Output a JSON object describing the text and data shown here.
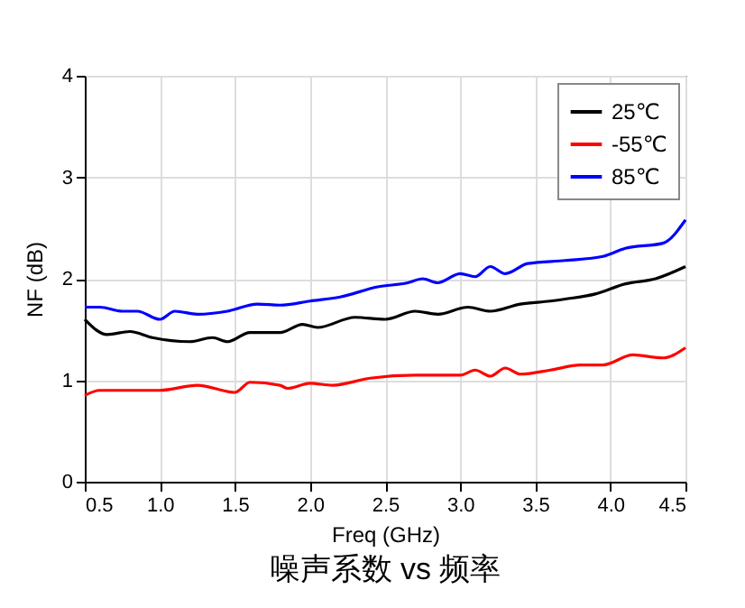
{
  "chart_data": {
    "type": "line",
    "xlabel": "Freq (GHz)",
    "ylabel": "NF (dB)",
    "annotations": [
      "噪声系数 vs 频率"
    ],
    "xlim": [
      0.5,
      4.5
    ],
    "xticks": [
      0.5,
      {
        "value": 1,
        "label": "1.0"
      },
      1.5,
      {
        "value": 2,
        "label": "2.0"
      },
      2.5,
      {
        "value": 3,
        "label": "3.0"
      },
      3.5,
      {
        "value": 4,
        "label": "4.0"
      },
      4.5
    ],
    "ylim": [
      0,
      4
    ],
    "yticks": [
      0,
      1,
      2,
      3,
      4
    ],
    "grid": true,
    "legend": "top right",
    "series": [
      {
        "name": "25℃",
        "color": "#000000",
        "x": [
          0.5,
          0.65,
          0.8,
          0.95,
          1.2,
          1.35,
          1.45,
          1.6,
          1.8,
          1.95,
          2.05,
          2.3,
          2.5,
          2.7,
          2.85,
          3.05,
          3.2,
          3.4,
          3.6,
          3.7,
          3.9,
          4.1,
          4.3,
          4.5
        ],
        "values": [
          1.6,
          1.45,
          1.48,
          1.42,
          1.38,
          1.42,
          1.38,
          1.47,
          1.47,
          1.55,
          1.52,
          1.62,
          1.6,
          1.68,
          1.65,
          1.72,
          1.68,
          1.75,
          1.78,
          1.8,
          1.85,
          1.95,
          2.0,
          2.12
        ]
      },
      {
        "name": "-55℃",
        "color": "#ff0000",
        "x": [
          0.5,
          0.6,
          1.0,
          1.25,
          1.5,
          1.6,
          1.8,
          1.85,
          2.0,
          2.15,
          2.4,
          2.7,
          3.0,
          3.1,
          3.2,
          3.3,
          3.4,
          3.6,
          3.8,
          3.95,
          4.15,
          4.35,
          4.5
        ],
        "values": [
          0.85,
          0.9,
          0.9,
          0.95,
          0.88,
          0.98,
          0.95,
          0.92,
          0.97,
          0.95,
          1.02,
          1.05,
          1.05,
          1.1,
          1.04,
          1.12,
          1.06,
          1.1,
          1.15,
          1.15,
          1.25,
          1.22,
          1.32
        ]
      },
      {
        "name": "85℃",
        "color": "#0000ff",
        "x": [
          0.5,
          0.6,
          0.75,
          0.85,
          1.0,
          1.1,
          1.25,
          1.45,
          1.65,
          1.8,
          2.0,
          2.2,
          2.45,
          2.65,
          2.75,
          2.85,
          3.0,
          3.1,
          3.2,
          3.3,
          3.45,
          3.7,
          3.95,
          4.1,
          4.35,
          4.5
        ],
        "values": [
          1.72,
          1.72,
          1.68,
          1.68,
          1.6,
          1.68,
          1.65,
          1.68,
          1.75,
          1.74,
          1.78,
          1.82,
          1.92,
          1.96,
          2.0,
          1.96,
          2.05,
          2.02,
          2.12,
          2.05,
          2.15,
          2.18,
          2.22,
          2.3,
          2.35,
          2.58
        ]
      }
    ]
  }
}
